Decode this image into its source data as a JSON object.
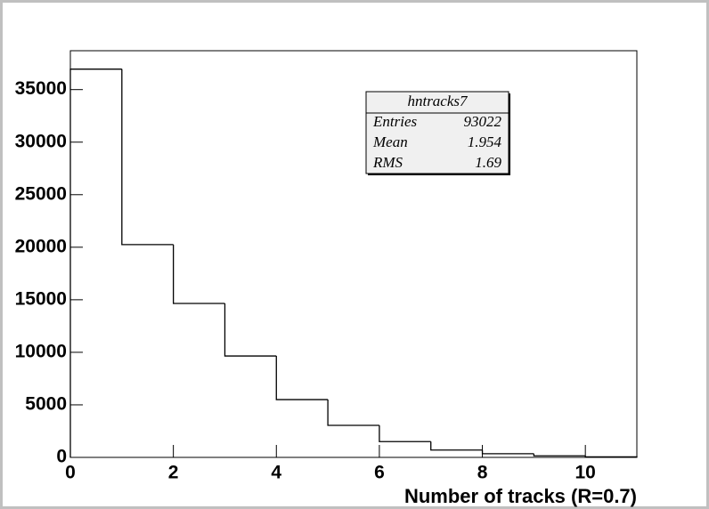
{
  "chart_data": {
    "type": "histogram",
    "x_label": "Number of tracks (R=0.7)",
    "bins": [
      0,
      1,
      2,
      3,
      4,
      5,
      6,
      7,
      8,
      9,
      10,
      11
    ],
    "counts": [
      36950,
      20250,
      14650,
      9650,
      5500,
      3050,
      1500,
      700,
      350,
      150,
      50
    ],
    "color": "#000000",
    "xlim": [
      0,
      11
    ],
    "xticks": [
      0,
      2,
      4,
      6,
      8,
      10
    ],
    "ylim": [
      0,
      38700
    ],
    "yticks": [
      0,
      5000,
      10000,
      15000,
      20000,
      25000,
      30000,
      35000
    ],
    "stats": {
      "title": "hntracks7",
      "rows": [
        [
          "Entries",
          "93022"
        ],
        [
          "Mean",
          "1.954"
        ],
        [
          "RMS",
          "1.69"
        ]
      ]
    }
  }
}
